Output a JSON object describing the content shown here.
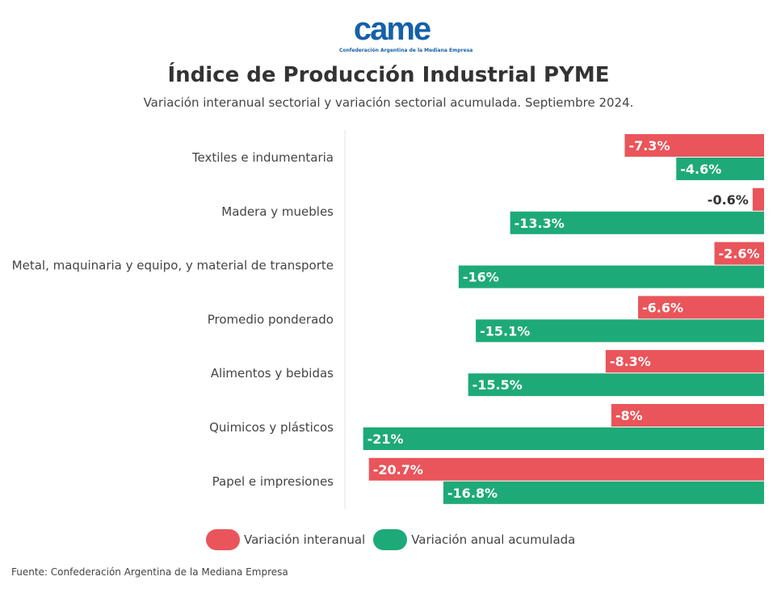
{
  "logo": {
    "text": "came",
    "subtitle": "Confederación Argentina de la Mediana Empresa"
  },
  "chart_data": {
    "type": "bar",
    "orientation": "horizontal",
    "title": "Índice de Producción Industrial PYME",
    "subtitle": "Variación interanual sectorial y variación sectorial acumulada. Septiembre 2024.",
    "categories": [
      "Textiles e indumentaria",
      "Madera y muebles",
      "Metal, maquinaria y equipo, y material de transporte",
      "Promedio ponderado",
      "Alimentos y bebidas",
      "Quimicos y plásticos",
      "Papel e impresiones"
    ],
    "series": [
      {
        "name": "Variación interanual",
        "color": "#E9555A",
        "values": [
          -7.3,
          -0.6,
          -2.6,
          -6.6,
          -8.3,
          -8,
          -20.7
        ],
        "labels": [
          "-7.3%",
          "-0.6%",
          "-2.6%",
          "-6.6%",
          "-8.3%",
          "-8%",
          "-20.7%"
        ]
      },
      {
        "name": "Variación anual acumulada",
        "color": "#1EAA78",
        "values": [
          -4.6,
          -13.3,
          -16,
          -15.1,
          -15.5,
          -21,
          -16.8
        ],
        "labels": [
          "-4.6%",
          "-13.3%",
          "-16%",
          "-15.1%",
          "-15.5%",
          "-21%",
          "-16.8%"
        ]
      }
    ],
    "xlim": [
      -22,
      0
    ],
    "grid": false,
    "legend": "bottom"
  },
  "source": "Fuente: Confederación Argentina de la Mediana Empresa"
}
